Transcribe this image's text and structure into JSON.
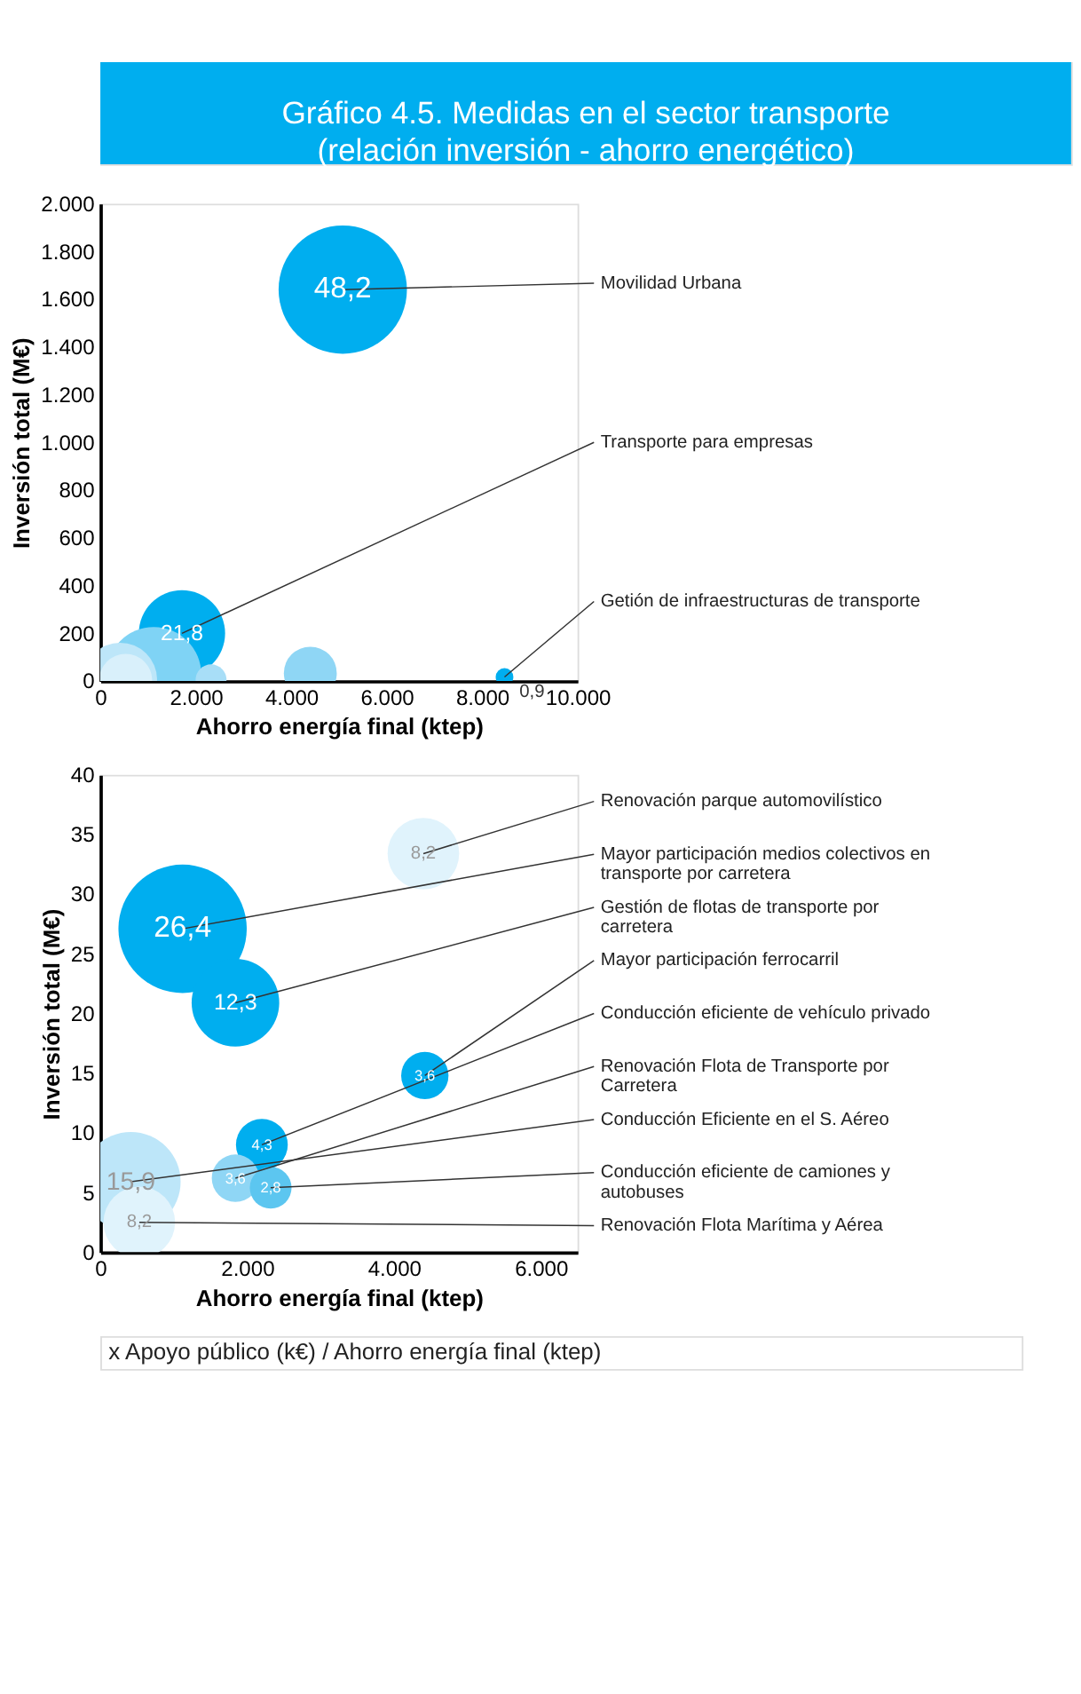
{
  "chart_data": [
    {
      "type": "bubble",
      "title": "Gráfico 4.5. Medidas en el sector transporte (relación inversión - ahorro energético)",
      "xlabel": "Ahorro energía final (ktep)",
      "ylabel": "Inversión total (M€)",
      "xlim": [
        0,
        10000
      ],
      "ylim": [
        0,
        2000
      ],
      "xticks": [
        0,
        {
          "value": 2000,
          "label": "2.000"
        },
        {
          "value": 4000,
          "label": "4.000"
        },
        {
          "value": 6000,
          "label": "6.000"
        },
        {
          "value": 8000,
          "label": "8.000"
        },
        {
          "value": 10000,
          "label": "10.000"
        }
      ],
      "yticks": [
        0,
        200,
        400,
        600,
        800,
        {
          "value": 1000,
          "label": "1.000"
        },
        {
          "value": 1200,
          "label": "1.200"
        },
        {
          "value": 1400,
          "label": "1.400"
        },
        {
          "value": 1600,
          "label": "1.600"
        },
        {
          "value": 1800,
          "label": "1.800"
        },
        {
          "value": 2000,
          "label": "2.000"
        }
      ],
      "series": [
        {
          "x": [
            1710,
            5080,
            8470
          ],
          "values": [
            200,
            1640,
            17
          ],
          "sizes": [
            0.452,
            1,
            0.019
          ],
          "colors": [
            "#00aeef",
            "#00aeef",
            "#00aeef"
          ]
        },
        {
          "x": [
            1120,
            4400,
            415,
            530,
            2320
          ],
          "values": [
            27,
            33,
            6,
            3,
            5
          ],
          "sizes": [
            0.548,
            0.17,
            0.33,
            0.17,
            0.058
          ],
          "colors": [
            "#7fd3f5",
            "#8fd6f5",
            "#bde6f9",
            "#d9f0fb",
            "#a8def7"
          ]
        }
      ],
      "annotations": [
        {
          "text": "21,8",
          "x": 1710,
          "y": 200
        },
        {
          "text": "48,2",
          "x": 5080,
          "y": 1640
        },
        {
          "text": "0,9",
          "x": 8470,
          "y": 17
        },
        {
          "text": "Movilidad Urbana",
          "x": 5080,
          "y": 1640
        },
        {
          "text": "Transporte para empresas",
          "x": 1710,
          "y": 200
        },
        {
          "text": "Getión de infraestructuras de transporte",
          "x": 8470,
          "y": 17
        }
      ]
    },
    {
      "type": "bubble",
      "xlabel": "Ahorro energía final (ktep)",
      "ylabel": "Inversión total (M€)",
      "xlim": [
        0,
        6500
      ],
      "ylim": [
        0,
        40
      ],
      "xticks": [
        0,
        {
          "value": 2000,
          "label": "2.000"
        },
        {
          "value": 4000,
          "label": "4.000"
        },
        {
          "value": 6000,
          "label": "6.000"
        }
      ],
      "yticks": [
        0,
        5,
        10,
        15,
        20,
        25,
        30,
        35,
        40
      ],
      "series": [
        {
          "x": [
            1120,
            1840,
            4400,
            4420,
            415,
            530,
            2200,
            1840,
            2320
          ],
          "values": [
            27.1,
            20.9,
            33.4,
            14.8,
            5.9,
            2.5,
            9.0,
            6.2,
            5.4
          ],
          "sizes": [
            1,
            0.466,
            0.311,
            0.136,
            0.602,
            0.311,
            0.163,
            0.136,
            0.106
          ],
          "colors": [
            "#00aeef",
            "#00aeef",
            "#e0f3fc",
            "#00aeef",
            "#bde6f9",
            "#e0f3fc",
            "#00aeef",
            "#8fd6f5",
            "#5cc6f0"
          ]
        }
      ],
      "annotations": [
        {
          "text": "26,4",
          "x": 1120,
          "y": 27.1
        },
        {
          "text": "12,3",
          "x": 1840,
          "y": 20.9
        },
        {
          "text": "8,2",
          "x": 4400,
          "y": 33.4
        },
        {
          "text": "3,6",
          "x": 4420,
          "y": 14.8
        },
        {
          "text": "15,9",
          "x": 415,
          "y": 5.9
        },
        {
          "text": "8,2",
          "x": 530,
          "y": 2.5
        },
        {
          "text": "4,3",
          "x": 2200,
          "y": 9.0
        },
        {
          "text": "3,6",
          "x": 1840,
          "y": 6.2
        },
        {
          "text": "2,8",
          "x": 2320,
          "y": 5.4
        },
        {
          "text": "Renovación parque automovilístico",
          "x": 4400,
          "y": 33.4
        },
        {
          "text": "Mayor participación medios colectivos en transporte por carretera",
          "x": 1120,
          "y": 27.1
        },
        {
          "text": "Gestión de flotas de transporte por carretera",
          "x": 1840,
          "y": 20.9
        },
        {
          "text": "Mayor participación ferrocarril",
          "x": 4420,
          "y": 14.8
        },
        {
          "text": "Conducción eficiente de vehículo privado",
          "x": 2200,
          "y": 9.0
        },
        {
          "text": "Renovación Flota de Transporte por Carretera",
          "x": 1840,
          "y": 6.2
        },
        {
          "text": "Conducción Eficiente en el S. Aéreo",
          "x": 415,
          "y": 5.9
        },
        {
          "text": "Conducción eficiente de camiones y autobuses",
          "x": 2320,
          "y": 5.4
        },
        {
          "text": "Renovación Flota Marítima y Aérea",
          "x": 530,
          "y": 2.5
        },
        "x Apoyo público (k€) / Ahorro energía final (ktep)"
      ]
    }
  ]
}
